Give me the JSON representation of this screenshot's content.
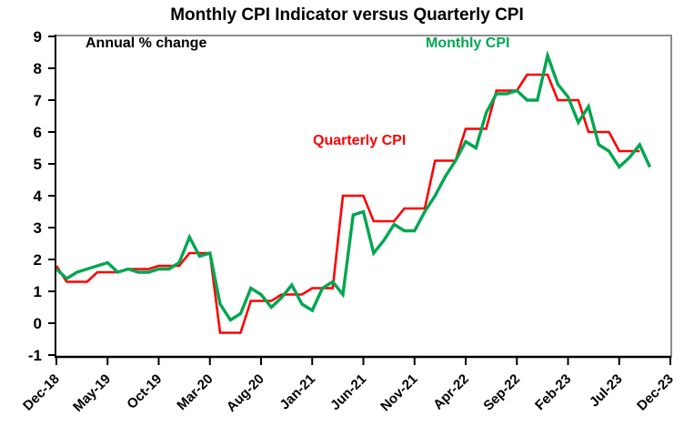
{
  "title": "Monthly CPI Indicator versus Quarterly CPI",
  "annotations": {
    "axis_note": "Annual % change",
    "monthly_legend": "Monthly CPI",
    "quarterly_legend": "Quarterly CPI"
  },
  "colors": {
    "monthly_line": "#00A651",
    "quarterly_line": "#FF0000",
    "frame_gray": "#8c8c8c",
    "axis_black": "#000000"
  },
  "chart_data": {
    "type": "line",
    "title": "Monthly CPI Indicator versus Quarterly CPI",
    "ylabel_note": "Annual % change",
    "ylim": [
      -1,
      9
    ],
    "y_ticks": [
      9,
      8,
      7,
      6,
      5,
      4,
      3,
      2,
      1,
      0,
      -1
    ],
    "x_tick_labels": [
      "Dec-18",
      "May-19",
      "Oct-19",
      "Mar-20",
      "Aug-20",
      "Jan-21",
      "Jun-21",
      "Nov-21",
      "Apr-22",
      "Sep-22",
      "Feb-23",
      "Jul-23",
      "Dec-23"
    ],
    "x_tick_month_indices": [
      0,
      5,
      10,
      15,
      20,
      25,
      30,
      35,
      40,
      45,
      50,
      55,
      60
    ],
    "x_axis_months_total": 60,
    "grid": false,
    "legend_position": "inline-text-labels",
    "series": [
      {
        "name": "Monthly CPI",
        "color": "#00A651",
        "style": "line",
        "months": [
          "Dec-18",
          "Jan-19",
          "Feb-19",
          "Mar-19",
          "Apr-19",
          "May-19",
          "Jun-19",
          "Jul-19",
          "Aug-19",
          "Sep-19",
          "Oct-19",
          "Nov-19",
          "Dec-19",
          "Jan-20",
          "Feb-20",
          "Mar-20",
          "Apr-20",
          "May-20",
          "Jun-20",
          "Jul-20",
          "Aug-20",
          "Sep-20",
          "Oct-20",
          "Nov-20",
          "Dec-20",
          "Jan-21",
          "Feb-21",
          "Mar-21",
          "Apr-21",
          "May-21",
          "Jun-21",
          "Jul-21",
          "Aug-21",
          "Sep-21",
          "Oct-21",
          "Nov-21",
          "Dec-21",
          "Jan-22",
          "Feb-22",
          "Mar-22",
          "Apr-22",
          "May-22",
          "Jun-22",
          "Jul-22",
          "Aug-22",
          "Sep-22",
          "Oct-22",
          "Nov-22",
          "Dec-22",
          "Jan-23",
          "Feb-23",
          "Mar-23",
          "Apr-23",
          "May-23",
          "Jun-23",
          "Jul-23",
          "Aug-23",
          "Sep-23",
          "Oct-23"
        ],
        "values": [
          1.7,
          1.4,
          1.6,
          1.7,
          1.8,
          1.9,
          1.6,
          1.7,
          1.6,
          1.6,
          1.7,
          1.7,
          1.9,
          2.7,
          2.1,
          2.2,
          0.6,
          0.1,
          0.3,
          1.1,
          0.9,
          0.5,
          0.8,
          1.2,
          0.6,
          0.4,
          1.1,
          1.3,
          0.9,
          3.4,
          3.5,
          2.2,
          2.6,
          3.1,
          2.9,
          2.9,
          3.5,
          4.0,
          4.6,
          5.1,
          5.7,
          5.5,
          6.6,
          7.2,
          7.2,
          7.3,
          7.0,
          7.0,
          8.4,
          7.5,
          7.1,
          6.3,
          6.8,
          5.6,
          5.4,
          4.9,
          5.2,
          5.6,
          4.9
        ]
      },
      {
        "name": "Quarterly CPI",
        "color": "#FF0000",
        "style": "quarterly-step",
        "quarters": [
          "Dec-18",
          "Mar-19",
          "Jun-19",
          "Sep-19",
          "Dec-19",
          "Mar-20",
          "Jun-20",
          "Sep-20",
          "Dec-20",
          "Mar-21",
          "Jun-21",
          "Sep-21",
          "Dec-21",
          "Mar-22",
          "Jun-22",
          "Sep-22",
          "Dec-22",
          "Mar-23",
          "Jun-23",
          "Sep-23"
        ],
        "values": [
          1.8,
          1.3,
          1.6,
          1.7,
          1.8,
          2.2,
          -0.3,
          0.7,
          0.9,
          1.1,
          4.0,
          3.2,
          3.6,
          5.1,
          6.1,
          7.3,
          7.8,
          7.0,
          6.0,
          5.4
        ]
      }
    ]
  }
}
